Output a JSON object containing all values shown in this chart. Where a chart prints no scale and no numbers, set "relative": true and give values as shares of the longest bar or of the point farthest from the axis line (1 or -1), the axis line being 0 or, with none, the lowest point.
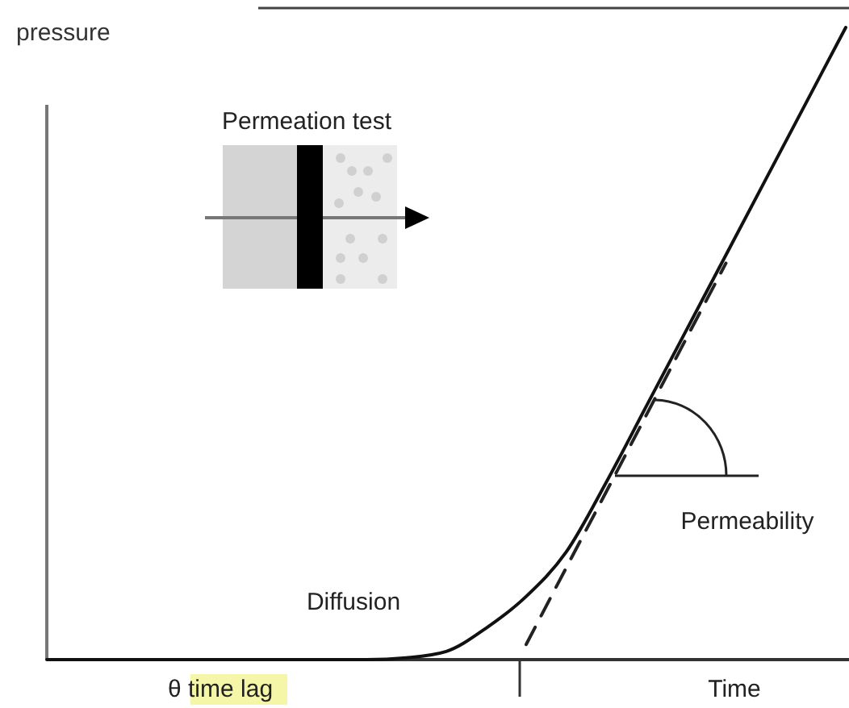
{
  "chart_data": {
    "type": "line",
    "relative": true,
    "xlabel": "Time",
    "ylabel": "pressure",
    "categories": [
      null,
      null,
      null,
      null,
      null,
      null,
      null,
      null,
      null,
      null,
      null,
      null,
      null,
      null,
      null,
      null,
      null,
      null,
      null,
      null,
      null
    ],
    "annotations": [
      "Permeation test",
      "Diffusion",
      "Permeability",
      "θ time lag"
    ],
    "series": [
      {
        "color": "#111111",
        "line_style": "solid",
        "values": [
          0,
          0,
          0,
          0,
          0,
          0,
          0,
          0,
          0,
          0.003,
          0.013,
          0.05,
          0.1,
          0.17,
          0.28,
          0.4,
          0.52,
          0.64,
          0.76,
          0.88,
          1.0
        ]
      },
      {
        "color": "#222222",
        "line_style": "dashed",
        "values": [
          null,
          null,
          null,
          null,
          null,
          null,
          null,
          null,
          null,
          null,
          null,
          null,
          0.024,
          0.145,
          0.265,
          0.386,
          0.507,
          0.627,
          null,
          null,
          null
        ]
      }
    ],
    "grid": false,
    "marker": "none"
  }
}
